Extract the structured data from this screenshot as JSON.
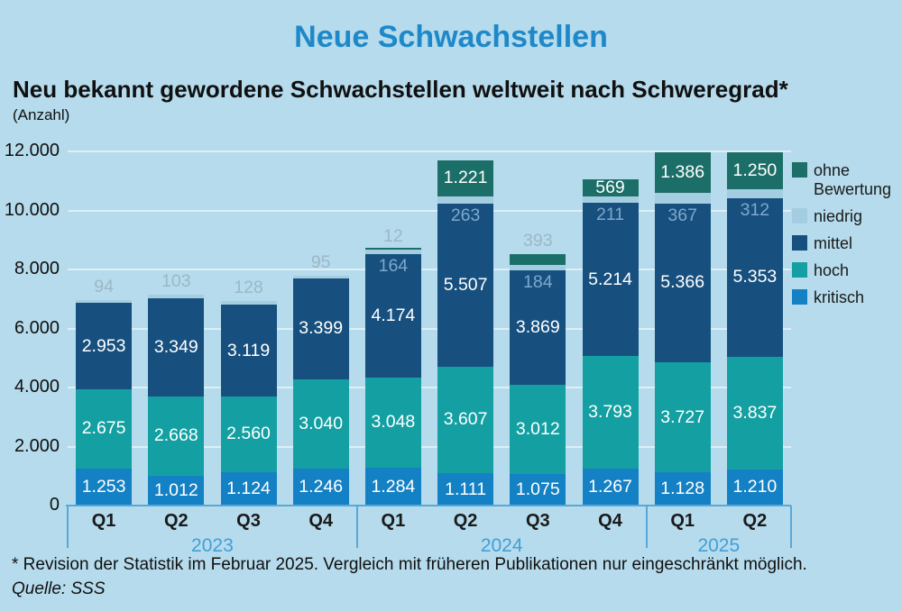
{
  "title": "Neue Schwachstellen",
  "subtitle": "Neu bekannt gewordene Schwachstellen weltweit nach Schweregrad*",
  "unit_label": "(Anzahl)",
  "footnote": "* Revision der Statistik im Februar 2025. Vergleich mit früheren Publikationen nur eingeschränkt möglich.",
  "source": "Quelle: SSS",
  "colors": {
    "background": "#b5dbec",
    "title": "#1e88c9",
    "kritisch": "#1581c5",
    "hoch": "#14a0a2",
    "mittel": "#17507f",
    "niedrig": "#a5cde2",
    "ohne_bewertung": "#1c6f68",
    "axis": "#5aa7d6",
    "year_label": "#419fd9",
    "label_inside": "#ffffff",
    "label_edge": "#7fa8cc",
    "label_above": "#9db7c6"
  },
  "legend": [
    {
      "key": "ohne_bewertung",
      "label": "ohne Bewertung"
    },
    {
      "key": "niedrig",
      "label": "niedrig"
    },
    {
      "key": "mittel",
      "label": "mittel"
    },
    {
      "key": "hoch",
      "label": "hoch"
    },
    {
      "key": "kritisch",
      "label": "kritisch"
    }
  ],
  "chart_data": {
    "type": "bar",
    "stacked": true,
    "grid": true,
    "legend_position": "right",
    "ylim": [
      0,
      12000
    ],
    "ytick_values": [
      0,
      2000,
      4000,
      6000,
      8000,
      10000,
      12000
    ],
    "ytick_labels": [
      "0",
      "2.000",
      "4.000",
      "6.000",
      "8.000",
      "10.000",
      "12.000"
    ],
    "series_order_bottom_to_top": [
      "kritisch",
      "hoch",
      "mittel",
      "niedrig",
      "ohne_bewertung"
    ],
    "bars": [
      {
        "year": "2023",
        "quarter": "Q1",
        "segments": [
          {
            "key": "kritisch",
            "value": 1253,
            "label": "1.253",
            "label_pos": "in"
          },
          {
            "key": "hoch",
            "value": 2675,
            "label": "2.675",
            "label_pos": "in"
          },
          {
            "key": "mittel",
            "value": 2953,
            "label": "2.953",
            "label_pos": "in"
          },
          {
            "key": "niedrig",
            "value": 94,
            "label": "94",
            "label_pos": "above"
          }
        ]
      },
      {
        "year": "2023",
        "quarter": "Q2",
        "segments": [
          {
            "key": "kritisch",
            "value": 1012,
            "label": "1.012",
            "label_pos": "in"
          },
          {
            "key": "hoch",
            "value": 2668,
            "label": "2.668",
            "label_pos": "in"
          },
          {
            "key": "mittel",
            "value": 3349,
            "label": "3.349",
            "label_pos": "in"
          },
          {
            "key": "niedrig",
            "value": 103,
            "label": "103",
            "label_pos": "above"
          }
        ]
      },
      {
        "year": "2023",
        "quarter": "Q3",
        "segments": [
          {
            "key": "kritisch",
            "value": 1124,
            "label": "1.124",
            "label_pos": "in"
          },
          {
            "key": "hoch",
            "value": 2560,
            "label": "2.560",
            "label_pos": "in"
          },
          {
            "key": "mittel",
            "value": 3119,
            "label": "3.119",
            "label_pos": "in"
          },
          {
            "key": "niedrig",
            "value": 128,
            "label": "128",
            "label_pos": "above"
          }
        ]
      },
      {
        "year": "2023",
        "quarter": "Q4",
        "segments": [
          {
            "key": "kritisch",
            "value": 1246,
            "label": "1.246",
            "label_pos": "in"
          },
          {
            "key": "hoch",
            "value": 3040,
            "label": "3.040",
            "label_pos": "in"
          },
          {
            "key": "mittel",
            "value": 3399,
            "label": "3.399",
            "label_pos": "in"
          },
          {
            "key": "niedrig",
            "value": 95,
            "label": "95",
            "label_pos": "above"
          }
        ]
      },
      {
        "year": "2024",
        "quarter": "Q1",
        "segments": [
          {
            "key": "kritisch",
            "value": 1284,
            "label": "1.284",
            "label_pos": "in"
          },
          {
            "key": "hoch",
            "value": 3048,
            "label": "3.048",
            "label_pos": "in"
          },
          {
            "key": "mittel",
            "value": 4174,
            "label": "4.174",
            "label_pos": "in"
          },
          {
            "key": "niedrig",
            "value": 164,
            "label": "164",
            "label_pos": "edge"
          },
          {
            "key": "ohne_bewertung",
            "value": 12,
            "label": "12",
            "label_pos": "above"
          }
        ]
      },
      {
        "year": "2024",
        "quarter": "Q2",
        "segments": [
          {
            "key": "kritisch",
            "value": 1111,
            "label": "1.111",
            "label_pos": "in"
          },
          {
            "key": "hoch",
            "value": 3607,
            "label": "3.607",
            "label_pos": "in"
          },
          {
            "key": "mittel",
            "value": 5507,
            "label": "5.507",
            "label_pos": "in"
          },
          {
            "key": "niedrig",
            "value": 263,
            "label": "263",
            "label_pos": "edge"
          },
          {
            "key": "ohne_bewertung",
            "value": 1221,
            "label": "1.221",
            "label_pos": "in"
          }
        ]
      },
      {
        "year": "2024",
        "quarter": "Q3",
        "segments": [
          {
            "key": "kritisch",
            "value": 1075,
            "label": "1.075",
            "label_pos": "in"
          },
          {
            "key": "hoch",
            "value": 3012,
            "label": "3.012",
            "label_pos": "in"
          },
          {
            "key": "mittel",
            "value": 3869,
            "label": "3.869",
            "label_pos": "in"
          },
          {
            "key": "niedrig",
            "value": 184,
            "label": "184",
            "label_pos": "edge"
          },
          {
            "key": "ohne_bewertung",
            "value": 393,
            "label": "393",
            "label_pos": "above"
          }
        ]
      },
      {
        "year": "2024",
        "quarter": "Q4",
        "segments": [
          {
            "key": "kritisch",
            "value": 1267,
            "label": "1.267",
            "label_pos": "in"
          },
          {
            "key": "hoch",
            "value": 3793,
            "label": "3.793",
            "label_pos": "in"
          },
          {
            "key": "mittel",
            "value": 5214,
            "label": "5.214",
            "label_pos": "in"
          },
          {
            "key": "niedrig",
            "value": 211,
            "label": "211",
            "label_pos": "edge"
          },
          {
            "key": "ohne_bewertung",
            "value": 569,
            "label": "569",
            "label_pos": "in"
          }
        ]
      },
      {
        "year": "2025",
        "quarter": "Q1",
        "segments": [
          {
            "key": "kritisch",
            "value": 1128,
            "label": "1.128",
            "label_pos": "in"
          },
          {
            "key": "hoch",
            "value": 3727,
            "label": "3.727",
            "label_pos": "in"
          },
          {
            "key": "mittel",
            "value": 5366,
            "label": "5.366",
            "label_pos": "in"
          },
          {
            "key": "niedrig",
            "value": 367,
            "label": "367",
            "label_pos": "edge"
          },
          {
            "key": "ohne_bewertung",
            "value": 1386,
            "label": "1.386",
            "label_pos": "in"
          }
        ]
      },
      {
        "year": "2025",
        "quarter": "Q2",
        "segments": [
          {
            "key": "kritisch",
            "value": 1210,
            "label": "1.210",
            "label_pos": "in"
          },
          {
            "key": "hoch",
            "value": 3837,
            "label": "3.837",
            "label_pos": "in"
          },
          {
            "key": "mittel",
            "value": 5353,
            "label": "5.353",
            "label_pos": "in"
          },
          {
            "key": "niedrig",
            "value": 312,
            "label": "312",
            "label_pos": "edge"
          },
          {
            "key": "ohne_bewertung",
            "value": 1250,
            "label": "1.250",
            "label_pos": "in"
          }
        ]
      }
    ]
  }
}
